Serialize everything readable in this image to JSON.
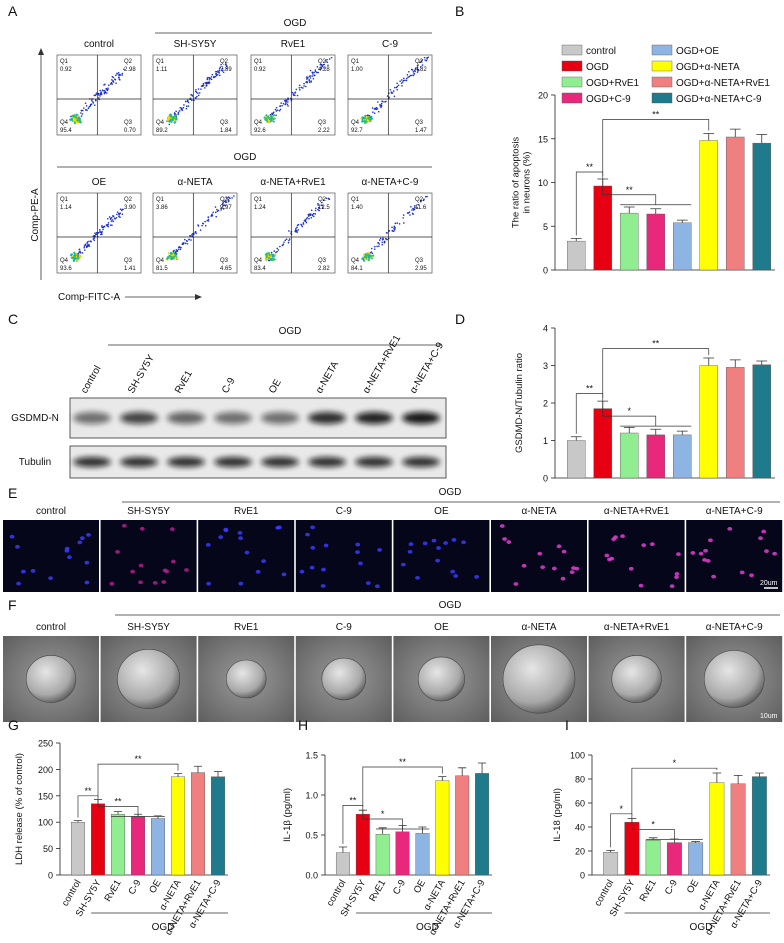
{
  "chart_data": [
    {
      "type": "bar",
      "panel": "B",
      "ylabel": [
        "The ratio of apoptosis",
        "in neurons (%)"
      ],
      "categories": [
        "control",
        "OGD",
        "OGD+RvE1",
        "OGD+C-9",
        "OGD+OE",
        "OGD+α-NETA",
        "OGD+α-NETA+RvE1",
        "OGD+α-NETA+C-9"
      ],
      "values": [
        3.3,
        9.6,
        6.5,
        6.4,
        5.4,
        14.8,
        15.2,
        14.5
      ],
      "errors": [
        0.3,
        0.8,
        0.7,
        0.6,
        0.3,
        0.8,
        0.9,
        1.0
      ],
      "colors": [
        "#c8c8c8",
        "#e60012",
        "#90ee90",
        "#e8287a",
        "#8db4e2",
        "#ffff00",
        "#f08080",
        "#1f7a8c"
      ],
      "legend": true,
      "ylim": [
        0,
        20
      ],
      "yticks": [
        0,
        5,
        10,
        15,
        20
      ],
      "annotations": [
        "**",
        "**",
        "**"
      ]
    },
    {
      "type": "bar",
      "panel": "D",
      "ylabel": [
        "GSDMD-N/Tubulin ratio"
      ],
      "values": [
        1.0,
        1.85,
        1.2,
        1.15,
        1.15,
        3.0,
        2.95,
        3.02
      ],
      "errors": [
        0.1,
        0.2,
        0.15,
        0.15,
        0.1,
        0.2,
        0.2,
        0.1
      ],
      "colors": [
        "#c8c8c8",
        "#e60012",
        "#90ee90",
        "#e8287a",
        "#8db4e2",
        "#ffff00",
        "#f08080",
        "#1f7a8c"
      ],
      "ylim": [
        0,
        4
      ],
      "yticks": [
        0,
        1,
        2,
        3,
        4
      ],
      "annotations": [
        "**",
        "*",
        "**"
      ]
    },
    {
      "type": "bar",
      "panel": "G",
      "ylabel": [
        "LDH release (% of control)"
      ],
      "categories": [
        "control",
        "SH-SY5Y",
        "RvE1",
        "C-9",
        "OE",
        "α-NETA",
        "α-NETA+RvE1",
        "α-NETA+C-9"
      ],
      "values": [
        100,
        135,
        115,
        110,
        107,
        186,
        194,
        186
      ],
      "errors": [
        3,
        8,
        5,
        5,
        5,
        6,
        12,
        10
      ],
      "colors": [
        "#c8c8c8",
        "#e60012",
        "#90ee90",
        "#e8287a",
        "#8db4e2",
        "#ffff00",
        "#f08080",
        "#1f7a8c"
      ],
      "ylim": [
        0,
        250
      ],
      "yticks": [
        0,
        50,
        100,
        150,
        200,
        250
      ],
      "group_label": "OGD",
      "annotations": [
        "**",
        "**",
        "**"
      ]
    },
    {
      "type": "bar",
      "panel": "H",
      "ylabel": [
        "IL-1β (pg/ml)"
      ],
      "categories": [
        "control",
        "SH-SY5Y",
        "RvE1",
        "C-9",
        "OE",
        "α-NETA",
        "α-NETA+RvE1",
        "α-NETA+C-9"
      ],
      "values": [
        0.28,
        0.76,
        0.51,
        0.54,
        0.52,
        1.18,
        1.24,
        1.27
      ],
      "errors": [
        0.07,
        0.05,
        0.08,
        0.08,
        0.08,
        0.05,
        0.1,
        0.13
      ],
      "colors": [
        "#c8c8c8",
        "#e60012",
        "#90ee90",
        "#e8287a",
        "#8db4e2",
        "#ffff00",
        "#f08080",
        "#1f7a8c"
      ],
      "ylim": [
        0,
        1.5
      ],
      "yticks": [
        {
          "value": 0,
          "label": "0.0"
        },
        0.5,
        {
          "value": 1,
          "label": "1.0"
        },
        1.5
      ],
      "group_label": "OGD",
      "annotations": [
        "**",
        "*",
        "**"
      ]
    },
    {
      "type": "bar",
      "panel": "I",
      "ylabel": [
        "IL-18 (pg/ml)"
      ],
      "categories": [
        "control",
        "SH-SY5Y",
        "RvE1",
        "C-9",
        "OE",
        "α-NETA",
        "α-NETA+RvE1",
        "α-NETA+C-9"
      ],
      "values": [
        19,
        44,
        29,
        27,
        27,
        77,
        76,
        82
      ],
      "errors": [
        1.5,
        3,
        2,
        3,
        1,
        8,
        7,
        3
      ],
      "colors": [
        "#c8c8c8",
        "#e60012",
        "#90ee90",
        "#e8287a",
        "#8db4e2",
        "#ffff00",
        "#f08080",
        "#1f7a8c"
      ],
      "ylim": [
        0,
        100
      ],
      "yticks": [
        0,
        20,
        40,
        60,
        80,
        100
      ],
      "group_label": "OGD",
      "annotations": [
        "*",
        "*",
        "*"
      ]
    }
  ],
  "flow_cytometry": {
    "panel": "A",
    "group_labels": [
      "OGD",
      "OGD"
    ],
    "ylabel": "Comp-PE-A",
    "xlabel": "Comp-FITC-A",
    "quadrant_names": [
      "Q1",
      "Q2",
      "Q3",
      "Q4"
    ],
    "plots": [
      {
        "title": "control",
        "q1": "0.92",
        "q2": "2.98",
        "q3": "0.70",
        "q4": "95.4"
      },
      {
        "title": "SH-SY5Y",
        "q1": "1.11",
        "q2": "7.89",
        "q3": "1.84",
        "q4": "89.2"
      },
      {
        "title": "RvE1",
        "q1": "0.92",
        "q2": "4.28",
        "q3": "2.22",
        "q4": "92.6"
      },
      {
        "title": "C-9",
        "q1": "1.00",
        "q2": "4.82",
        "q3": "1.47",
        "q4": "92.7"
      },
      {
        "title": "OE",
        "q1": "1.14",
        "q2": "3.90",
        "q3": "1.41",
        "q4": "93.6"
      },
      {
        "title": "α-NETA",
        "q1": "3.86",
        "q2": "9.97",
        "q3": "4.65",
        "q4": "81.5"
      },
      {
        "title": "α-NETA+RvE1",
        "q1": "1.24",
        "q2": "12.5",
        "q3": "2.82",
        "q4": "83.4"
      },
      {
        "title": "α-NETA+C-9",
        "q1": "1.40",
        "q2": "11.6",
        "q3": "2.95",
        "q4": "84.1"
      }
    ]
  },
  "western_blot": {
    "panel": "C",
    "group_label": "OGD",
    "lanes": [
      "control",
      "SH-SY5Y",
      "RvE1",
      "C-9",
      "OE",
      "α-NETA",
      "α-NETA+RvE1",
      "α-NETA+C-9"
    ],
    "rows": [
      "GSDMD-N",
      "Tubulin"
    ]
  },
  "immunofluorescence": {
    "panel": "E",
    "group_label": "OGD",
    "scale_bar": "20um",
    "labels": [
      "control",
      "SH-SY5Y",
      "RvE1",
      "C-9",
      "OE",
      "α-NETA",
      "α-NETA+RvE1",
      "α-NETA+C-9"
    ]
  },
  "sem": {
    "panel": "F",
    "group_label": "OGD",
    "scale_bar": "10um",
    "labels": [
      "control",
      "SH-SY5Y",
      "RvE1",
      "C-9",
      "OE",
      "α-NETA",
      "α-NETA+RvE1",
      "α-NETA+C-9"
    ]
  }
}
